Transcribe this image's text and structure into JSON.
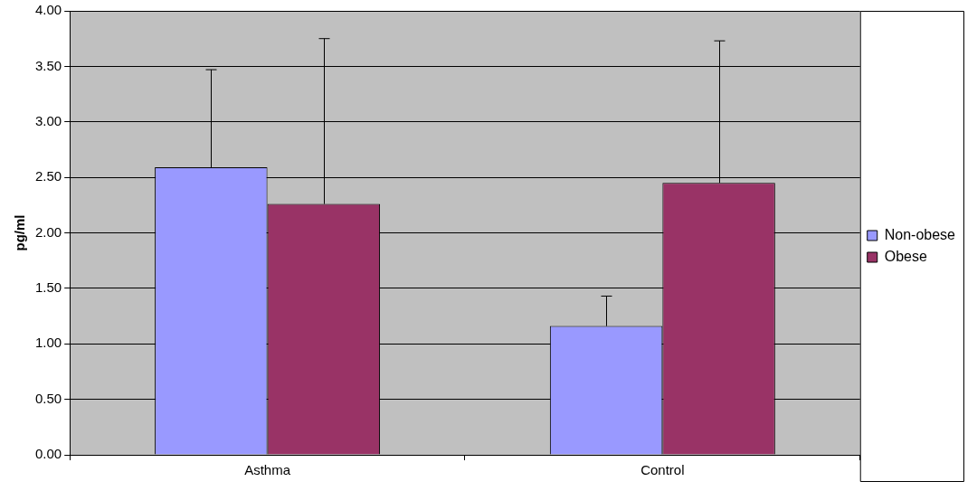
{
  "chart_data": {
    "type": "bar",
    "ylabel": "pg/ml",
    "categories": [
      "Asthma",
      "Control"
    ],
    "series": [
      {
        "name": "Non-obese",
        "color": "#9999ff",
        "values": [
          2.59,
          1.16
        ],
        "errors": [
          [
            2.59,
            3.47
          ],
          [
            1.16,
            1.43
          ]
        ]
      },
      {
        "name": "Obese",
        "color": "#993366",
        "values": [
          2.26,
          2.45
        ],
        "errors": [
          [
            2.26,
            3.75
          ],
          [
            2.45,
            3.73
          ]
        ]
      }
    ],
    "ylim": [
      0,
      4
    ],
    "yticks": [
      {
        "value": 0,
        "label": "0.00"
      },
      {
        "value": 0.5,
        "label": "0.50"
      },
      {
        "value": 1,
        "label": "1.00"
      },
      {
        "value": 1.5,
        "label": "1.50"
      },
      {
        "value": 2,
        "label": "2.00"
      },
      {
        "value": 2.5,
        "label": "2.50"
      },
      {
        "value": 3,
        "label": "3.00"
      },
      {
        "value": 3.5,
        "label": "3.50"
      },
      {
        "value": 4,
        "label": "4.00"
      }
    ],
    "grid": "y",
    "legend": "right"
  }
}
